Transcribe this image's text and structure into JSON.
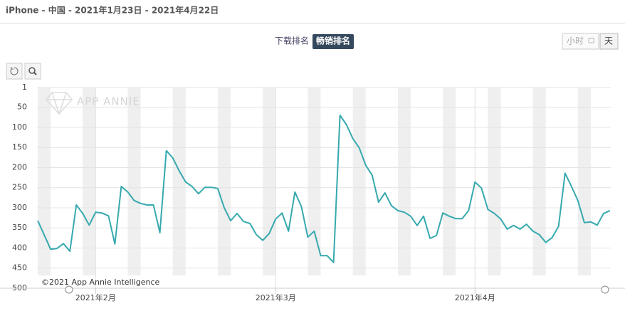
{
  "header": {
    "title": "iPhone - 中国 - 2021年1月23日 - 2021年4月22日"
  },
  "tabs": [
    "下载排名",
    "畅销排名"
  ],
  "granularity": [
    "小时",
    "天"
  ],
  "watermark": "APP ANNIE",
  "copyright": "©2021 App Annie Intelligence",
  "chart_data": {
    "type": "line",
    "color": "#36a9ae",
    "y_inverted": true,
    "grid": true,
    "values": [
      332,
      367,
      403,
      401,
      389,
      408,
      293,
      314,
      343,
      311,
      313,
      320,
      390,
      247,
      261,
      282,
      289,
      293,
      293,
      362,
      158,
      176,
      208,
      236,
      247,
      265,
      249,
      249,
      252,
      300,
      332,
      314,
      334,
      339,
      367,
      381,
      364,
      328,
      313,
      358,
      261,
      297,
      373,
      358,
      419,
      419,
      436,
      70,
      93,
      128,
      151,
      194,
      219,
      286,
      263,
      295,
      307,
      311,
      321,
      344,
      321,
      376,
      369,
      313,
      321,
      327,
      327,
      307,
      236,
      251,
      304,
      314,
      328,
      353,
      344,
      353,
      341,
      358,
      367,
      386,
      374,
      346,
      214,
      247,
      282,
      337,
      335,
      343,
      314,
      307
    ],
    "xlim": [
      0,
      89
    ],
    "xticks": [
      {
        "value": 9,
        "label": "2021年2月"
      },
      {
        "value": 37,
        "label": "2021年3月"
      },
      {
        "value": 68,
        "label": "2021年4月"
      }
    ],
    "ylim": [
      1,
      500
    ],
    "yticks": [
      1,
      50,
      100,
      150,
      200,
      250,
      300,
      350,
      400,
      450,
      500
    ]
  }
}
